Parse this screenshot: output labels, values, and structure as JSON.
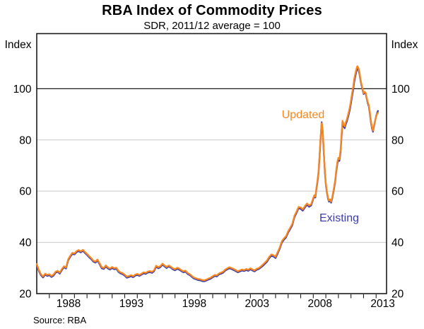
{
  "title": "RBA Index of Commodity Prices",
  "subtitle": "SDR, 2011/12 average = 100",
  "source": "Source: RBA",
  "axes": {
    "left_unit": "Index",
    "right_unit": "Index"
  },
  "series_labels": {
    "updated": "Updated",
    "existing": "Existing"
  },
  "colors": {
    "updated": "#F7871E",
    "existing": "#3C3CAC",
    "grid": "#C9C9C9",
    "reference_line": "#1A1A1A",
    "frame": "#1A1A1A",
    "text": "#000000"
  },
  "chart_data": {
    "type": "line",
    "title": "RBA Index of Commodity Prices",
    "subtitle": "SDR, 2011/12 average = 100",
    "ylabel": "Index",
    "xlabel": "",
    "ylim": [
      20,
      121.5
    ],
    "xlim": [
      1986.0,
      2013.83
    ],
    "y_ticks": [
      20,
      40,
      60,
      80,
      100
    ],
    "x_ticks_years": [
      1988,
      1993,
      1998,
      2003,
      2008,
      2013
    ],
    "reference_line_y": 100,
    "grid": "horizontal",
    "legend": "inline-labels",
    "x": [
      1986.0,
      1986.17,
      1986.33,
      1986.5,
      1986.67,
      1986.83,
      1987.0,
      1987.17,
      1987.33,
      1987.5,
      1987.67,
      1987.83,
      1988.0,
      1988.17,
      1988.33,
      1988.5,
      1988.67,
      1988.83,
      1989.0,
      1989.17,
      1989.33,
      1989.5,
      1989.67,
      1989.83,
      1990.0,
      1990.17,
      1990.33,
      1990.5,
      1990.67,
      1990.83,
      1991.0,
      1991.17,
      1991.33,
      1991.5,
      1991.67,
      1991.83,
      1992.0,
      1992.17,
      1992.33,
      1992.5,
      1992.67,
      1992.83,
      1993.0,
      1993.17,
      1993.33,
      1993.5,
      1993.67,
      1993.83,
      1994.0,
      1994.17,
      1994.33,
      1994.5,
      1994.67,
      1994.83,
      1995.0,
      1995.17,
      1995.33,
      1995.5,
      1995.67,
      1995.83,
      1996.0,
      1996.17,
      1996.33,
      1996.5,
      1996.67,
      1996.83,
      1997.0,
      1997.17,
      1997.33,
      1997.5,
      1997.67,
      1997.83,
      1998.0,
      1998.17,
      1998.33,
      1998.5,
      1998.67,
      1998.83,
      1999.0,
      1999.17,
      1999.33,
      1999.5,
      1999.67,
      1999.83,
      2000.0,
      2000.17,
      2000.33,
      2000.5,
      2000.67,
      2000.83,
      2001.0,
      2001.17,
      2001.33,
      2001.5,
      2001.67,
      2001.83,
      2002.0,
      2002.17,
      2002.33,
      2002.5,
      2002.67,
      2002.83,
      2003.0,
      2003.17,
      2003.33,
      2003.5,
      2003.67,
      2003.83,
      2004.0,
      2004.17,
      2004.33,
      2004.5,
      2004.67,
      2004.83,
      2005.0,
      2005.17,
      2005.33,
      2005.5,
      2005.67,
      2005.83,
      2006.0,
      2006.17,
      2006.33,
      2006.5,
      2006.67,
      2006.83,
      2007.0,
      2007.17,
      2007.33,
      2007.5,
      2007.67,
      2007.83,
      2008.0,
      2008.08,
      2008.17,
      2008.25,
      2008.33,
      2008.42,
      2008.5,
      2008.58,
      2008.67,
      2008.75,
      2008.83,
      2008.92,
      2009.0,
      2009.08,
      2009.17,
      2009.25,
      2009.33,
      2009.42,
      2009.5,
      2009.58,
      2009.67,
      2009.75,
      2009.83,
      2009.92,
      2010.0,
      2010.08,
      2010.17,
      2010.25,
      2010.33,
      2010.42,
      2010.5,
      2010.58,
      2010.67,
      2010.75,
      2010.83,
      2010.92,
      2011.0,
      2011.08,
      2011.17,
      2011.25,
      2011.33,
      2011.42,
      2011.5,
      2011.58,
      2011.67,
      2011.75,
      2011.83,
      2011.92,
      2012.0,
      2012.08,
      2012.17,
      2012.25,
      2012.33,
      2012.42,
      2012.5,
      2012.58,
      2012.67,
      2012.75,
      2012.83,
      2012.92,
      2013.0,
      2013.08,
      2013.15
    ],
    "series": [
      {
        "name": "Updated",
        "color": "#F7871E",
        "values": [
          31.6,
          29.2,
          27.6,
          26.7,
          27.8,
          27.3,
          27.6,
          26.9,
          27.4,
          28.6,
          28.9,
          28.2,
          29.6,
          30.7,
          30.2,
          33.4,
          34.8,
          35.9,
          35.7,
          36.6,
          37.0,
          36.5,
          37.1,
          36.3,
          35.5,
          34.6,
          33.9,
          32.9,
          32.5,
          33.3,
          31.9,
          30.3,
          30.0,
          31.0,
          30.2,
          29.8,
          30.4,
          29.9,
          30.1,
          28.9,
          28.3,
          28.0,
          27.4,
          26.6,
          26.9,
          27.2,
          26.8,
          27.4,
          27.7,
          27.3,
          27.8,
          28.3,
          28.1,
          28.6,
          28.8,
          28.5,
          29.1,
          30.9,
          30.3,
          30.7,
          31.7,
          31.0,
          30.4,
          31.0,
          30.5,
          29.9,
          29.5,
          30.1,
          29.8,
          29.2,
          28.7,
          29.0,
          28.1,
          27.6,
          27.0,
          26.3,
          26.0,
          25.7,
          25.6,
          25.3,
          25.2,
          25.5,
          25.9,
          26.2,
          26.8,
          27.3,
          27.1,
          27.9,
          28.2,
          28.6,
          29.4,
          29.9,
          30.3,
          30.0,
          29.6,
          29.2,
          28.7,
          29.1,
          29.4,
          29.2,
          29.6,
          29.3,
          29.9,
          29.4,
          29.1,
          29.7,
          30.0,
          30.6,
          31.4,
          32.2,
          33.0,
          34.4,
          35.3,
          35.0,
          34.4,
          36.2,
          38.0,
          40.4,
          41.6,
          42.4,
          44.3,
          45.8,
          47.2,
          50.3,
          52.0,
          53.8,
          53.6,
          52.9,
          54.1,
          55.2,
          54.4,
          54.9,
          57.3,
          58.4,
          57.9,
          61.5,
          64.0,
          68.0,
          74.0,
          81.0,
          86.5,
          84.0,
          76.0,
          68.0,
          63.0,
          60.0,
          57.5,
          56.3,
          56.8,
          55.9,
          57.5,
          59.5,
          62.0,
          64.5,
          68.5,
          71.5,
          73.0,
          72.5,
          76.0,
          82.0,
          87.5,
          86.0,
          85.3,
          86.8,
          88.0,
          89.5,
          91.0,
          93.0,
          95.5,
          98.0,
          100.5,
          103.5,
          105.5,
          107.5,
          108.8,
          108.3,
          106.5,
          104.0,
          102.0,
          100.0,
          98.2,
          98.8,
          98.4,
          96.5,
          94.8,
          93.6,
          91.0,
          87.5,
          85.0,
          83.6,
          85.5,
          87.5,
          89.0,
          90.2,
          90.6
        ]
      },
      {
        "name": "Existing",
        "color": "#3C3CAC",
        "values": [
          31.2,
          28.8,
          27.2,
          26.3,
          27.4,
          26.9,
          27.2,
          26.5,
          27.0,
          28.2,
          28.5,
          27.8,
          29.2,
          30.3,
          29.8,
          33.0,
          34.4,
          35.5,
          35.3,
          36.2,
          36.6,
          36.1,
          36.7,
          35.9,
          35.1,
          34.2,
          33.5,
          32.5,
          32.1,
          32.9,
          31.5,
          29.9,
          29.6,
          30.6,
          29.8,
          29.4,
          30.0,
          29.5,
          29.7,
          28.5,
          27.9,
          27.6,
          27.0,
          26.2,
          26.5,
          26.8,
          26.4,
          27.0,
          27.3,
          26.9,
          27.4,
          27.9,
          27.7,
          28.2,
          28.4,
          28.1,
          28.7,
          30.5,
          29.9,
          30.3,
          31.3,
          30.6,
          30.0,
          30.6,
          30.1,
          29.5,
          29.1,
          29.7,
          29.4,
          28.8,
          28.3,
          28.6,
          27.7,
          27.2,
          26.6,
          25.9,
          25.6,
          25.3,
          25.2,
          24.9,
          24.8,
          25.1,
          25.5,
          25.8,
          26.4,
          26.9,
          26.7,
          27.5,
          27.8,
          28.2,
          29.0,
          29.5,
          29.9,
          29.6,
          29.2,
          28.8,
          28.3,
          28.7,
          29.0,
          28.8,
          29.2,
          28.9,
          29.5,
          29.0,
          28.7,
          29.3,
          29.6,
          30.2,
          30.9,
          31.7,
          32.5,
          33.9,
          34.8,
          34.5,
          33.9,
          35.7,
          37.5,
          39.9,
          41.1,
          41.9,
          43.8,
          45.3,
          46.7,
          49.8,
          51.5,
          53.3,
          53.1,
          52.4,
          53.6,
          54.7,
          53.9,
          54.4,
          56.9,
          58.0,
          57.5,
          61.0,
          63.4,
          67.3,
          73.2,
          80.2,
          86.9,
          83.6,
          75.5,
          67.5,
          62.6,
          59.6,
          57.1,
          55.9,
          56.4,
          55.5,
          57.0,
          59.0,
          61.4,
          63.9,
          67.8,
          70.8,
          72.3,
          71.8,
          75.2,
          81.0,
          86.6,
          85.2,
          84.6,
          86.0,
          87.2,
          88.6,
          90.1,
          92.0,
          94.4,
          96.9,
          99.4,
          102.3,
          104.4,
          106.5,
          108.0,
          107.6,
          105.9,
          103.5,
          101.5,
          99.6,
          97.9,
          98.4,
          98.0,
          96.2,
          94.4,
          93.1,
          90.4,
          87.0,
          84.5,
          83.2,
          85.2,
          87.4,
          89.2,
          90.6,
          91.3
        ]
      }
    ]
  }
}
